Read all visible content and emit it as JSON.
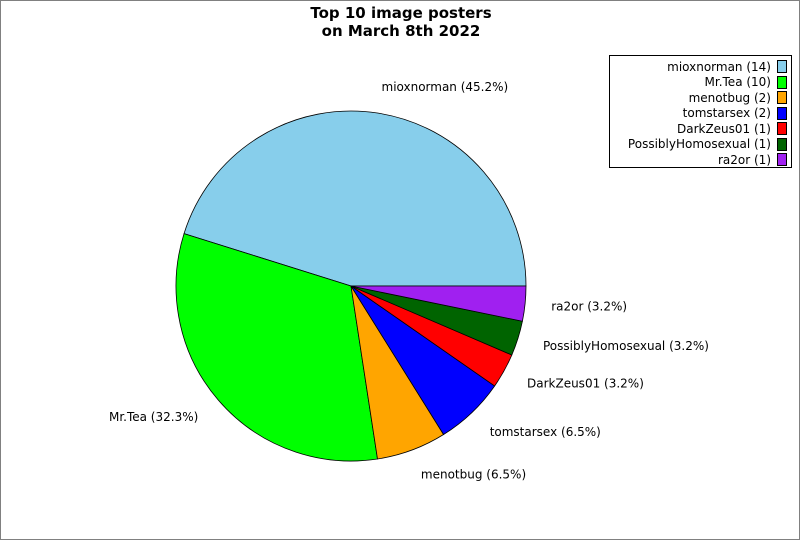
{
  "chart_data": {
    "type": "pie",
    "title": "Top 10 image posters",
    "subtitle": "on March 8th 2022",
    "slices": [
      {
        "label": "mioxnorman",
        "count": 14,
        "percent_label": "45.2%",
        "color": "#87ceeb"
      },
      {
        "label": "Mr.Tea",
        "count": 10,
        "percent_label": "32.3%",
        "color": "#00ff00"
      },
      {
        "label": "menotbug",
        "count": 2,
        "percent_label": "6.5%",
        "color": "#ffa500"
      },
      {
        "label": "tomstarsex",
        "count": 2,
        "percent_label": "6.5%",
        "color": "#0000ff"
      },
      {
        "label": "DarkZeus01",
        "count": 1,
        "percent_label": "3.2%",
        "color": "#ff0000"
      },
      {
        "label": "PossiblyHomosexual",
        "count": 1,
        "percent_label": "3.2%",
        "color": "#006400"
      },
      {
        "label": "ra2or",
        "count": 1,
        "percent_label": "3.2%",
        "color": "#a020f0"
      }
    ],
    "legend_position": "top-right",
    "start_angle_degrees": 0,
    "direction": "counterclockwise"
  }
}
